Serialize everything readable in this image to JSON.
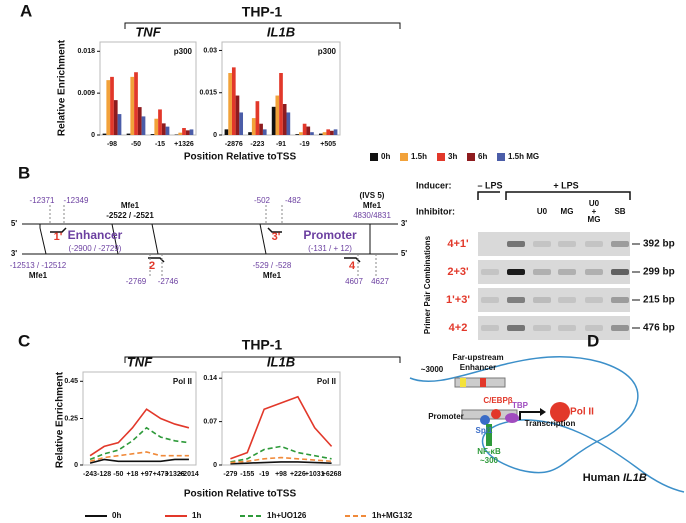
{
  "panel_a": {
    "label": "A",
    "title": "THP-1",
    "x_label": "Position Relative toTSS",
    "y_label": "Relative Enrichment"
  },
  "panel_c": {
    "label": "C",
    "title": "THP-1",
    "x_label": "Position Relative toTSS",
    "y_label": "Relative Enrichment"
  },
  "chart_data": [
    {
      "type": "bar",
      "title": "TNF",
      "annotation": "p300",
      "categories": [
        "-98",
        "-50",
        "-15",
        "+1326"
      ],
      "ylim": [
        0,
        0.02
      ],
      "yticks": [
        0,
        0.009,
        0.018
      ],
      "series": [
        {
          "color": "#111111",
          "values": [
            0.0003,
            0.0003,
            0.0002,
            0.0001
          ]
        },
        {
          "color": "#f2a23a",
          "values": [
            0.0118,
            0.0125,
            0.0035,
            0.0005
          ]
        },
        {
          "color": "#e2382a",
          "values": [
            0.0125,
            0.0135,
            0.0055,
            0.0015
          ]
        },
        {
          "color": "#8e1b1e",
          "values": [
            0.0075,
            0.006,
            0.0025,
            0.001
          ]
        },
        {
          "color": "#4b5da8",
          "values": [
            0.0045,
            0.004,
            0.0018,
            0.0012
          ]
        }
      ]
    },
    {
      "type": "bar",
      "title": "IL1B",
      "annotation": "p300",
      "categories": [
        "-2876",
        "-223",
        "-91",
        "-19",
        "+505"
      ],
      "ylim": [
        0,
        0.033
      ],
      "yticks": [
        0,
        0.015,
        0.03
      ],
      "series": [
        {
          "name": "0h",
          "color": "#111111",
          "values": [
            0.002,
            0.001,
            0.01,
            0.0003,
            0.0005
          ]
        },
        {
          "name": "1.5h",
          "color": "#f2a23a",
          "values": [
            0.022,
            0.006,
            0.014,
            0.001,
            0.001
          ]
        },
        {
          "name": "3h",
          "color": "#e2382a",
          "values": [
            0.024,
            0.012,
            0.022,
            0.004,
            0.002
          ]
        },
        {
          "name": "6h",
          "color": "#8e1b1e",
          "values": [
            0.014,
            0.004,
            0.011,
            0.003,
            0.0015
          ]
        },
        {
          "name": "1.5h MG",
          "color": "#4b5da8",
          "values": [
            0.008,
            0.002,
            0.008,
            0.001,
            0.002
          ]
        }
      ]
    },
    {
      "type": "line",
      "title": "TNF",
      "annotation": "Pol II",
      "categories": [
        "-243",
        "-128",
        "-50",
        "+18",
        "+97",
        "+473",
        "+1326",
        "+2014"
      ],
      "ylim": [
        0,
        0.5
      ],
      "yticks": [
        0,
        0.25,
        0.45
      ],
      "series": [
        {
          "name": "0h",
          "color": "#111111",
          "dash": false,
          "values": [
            0.01,
            0.03,
            0.02,
            0.02,
            0.02,
            0.02,
            0.03,
            0.03
          ]
        },
        {
          "name": "1h",
          "color": "#e2382a",
          "dash": false,
          "values": [
            0.05,
            0.1,
            0.12,
            0.2,
            0.3,
            0.25,
            0.22,
            0.2
          ]
        },
        {
          "name": "1h+UO126",
          "color": "#2e9a3a",
          "dash": true,
          "values": [
            0.03,
            0.06,
            0.08,
            0.13,
            0.2,
            0.15,
            0.13,
            0.12
          ]
        },
        {
          "name": "1h+MG132",
          "color": "#f08a3a",
          "dash": true,
          "values": [
            0.02,
            0.04,
            0.05,
            0.06,
            0.07,
            0.05,
            0.05,
            0.05
          ]
        }
      ]
    },
    {
      "type": "line",
      "title": "IL1B",
      "annotation": "Pol II",
      "categories": [
        "-279",
        "-155",
        "-19",
        "+98",
        "+226",
        "+1031",
        "+6268"
      ],
      "ylim": [
        0,
        0.15
      ],
      "yticks": [
        0,
        0.07,
        0.14
      ],
      "series": [
        {
          "color": "#111111",
          "dash": false,
          "values": [
            0.002,
            0.003,
            0.004,
            0.005,
            0.005,
            0.004,
            0.003
          ]
        },
        {
          "color": "#e2382a",
          "dash": false,
          "values": [
            0.01,
            0.02,
            0.09,
            0.1,
            0.11,
            0.06,
            0.03
          ]
        },
        {
          "color": "#2e9a3a",
          "dash": true,
          "values": [
            0.005,
            0.01,
            0.025,
            0.03,
            0.02,
            0.015,
            0.01
          ]
        },
        {
          "color": "#f08a3a",
          "dash": true,
          "values": [
            0.004,
            0.006,
            0.01,
            0.012,
            0.01,
            0.008,
            0.006
          ]
        }
      ]
    }
  ],
  "panel_b": {
    "label": "B",
    "map": [
      "5'",
      "3'",
      "3'",
      "5'",
      "-12371",
      "-12349",
      "Mfe1",
      "-2522 / -2521",
      "-502",
      "-482",
      "(IVS 5)",
      "Mfe1",
      "4830/4831",
      "Enhancer",
      "(-2900 / -2729)",
      "1'",
      "3'",
      "Promoter",
      "(-131 / + 12)",
      "-12513 / -12512",
      "Mfe1",
      "2",
      "-2769",
      "-2746",
      "-529 / -528",
      "Mfe1",
      "4",
      "4607",
      "4627"
    ],
    "gel": {
      "inducer_label": "Inducer:",
      "inducers": [
        "– LPS",
        "+ LPS"
      ],
      "inhibitor_label": "Inhibitor:",
      "inhibitors": [
        "U0",
        "MG",
        [
          "U0",
          "+",
          "MG"
        ],
        "SB"
      ],
      "y_label": "Primer Pair Combinations",
      "rows": [
        {
          "primers": "4+1'",
          "size": "392 bp"
        },
        {
          "primers": "2+3'",
          "size": "299 bp"
        },
        {
          "primers": "1'+3'",
          "size": "215 bp"
        },
        {
          "primers": "4+2",
          "size": "476 bp"
        }
      ]
    }
  },
  "panel_d": {
    "label": "D",
    "far_upstream": "Far-upstream",
    "enhancer": "Enhancer",
    "enhancer_pos": "~3000",
    "cebp": "C/EBPβ",
    "tbp": "TBP",
    "pol": "Pol II",
    "promoter": "Promoter",
    "spi1": "Spi1",
    "transcription": "Transcription",
    "nfkb": "NF-κB",
    "nfkb_pos": "~300",
    "species": "Human",
    "gene": "IL1B"
  }
}
